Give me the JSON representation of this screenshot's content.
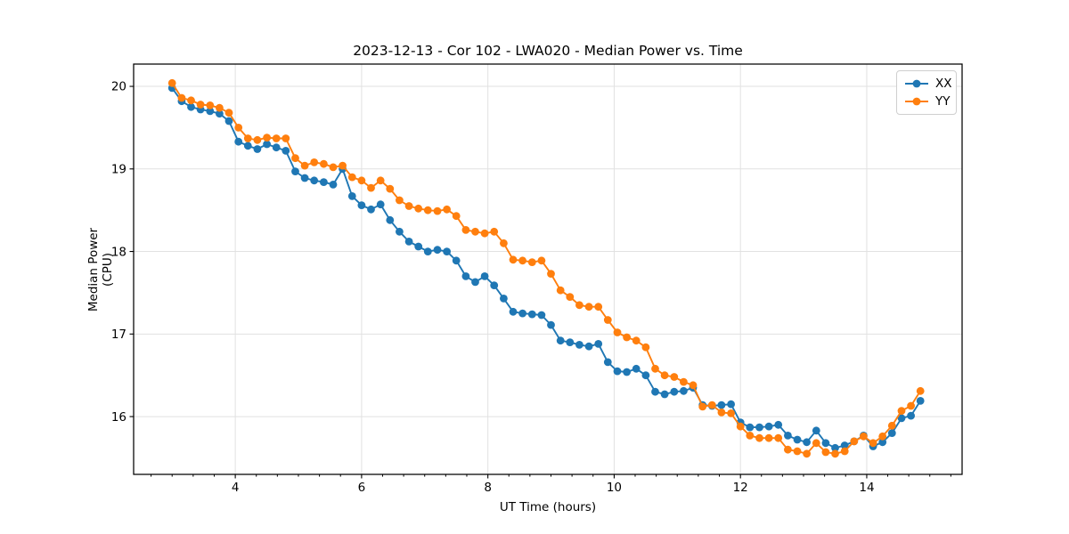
{
  "chart_data": {
    "type": "line",
    "title": "2023-12-13 - Cor 102 - LWA020 - Median Power vs. Time",
    "xlabel": "UT Time (hours)",
    "ylabel": "Median Power (CPU)",
    "xlim": [
      2.39,
      15.51
    ],
    "ylim": [
      15.3,
      20.27
    ],
    "xticks": [
      4,
      6,
      8,
      10,
      12,
      14
    ],
    "yticks": [
      16,
      17,
      18,
      19,
      20
    ],
    "x_minor_tick_step": 0.3333,
    "grid": true,
    "grid_color": "#e1e1e1",
    "legend_position": "upper right",
    "marker_style": "circle",
    "x": [
      3.0,
      3.15,
      3.3,
      3.45,
      3.6,
      3.75,
      3.9,
      4.05,
      4.2,
      4.35,
      4.5,
      4.65,
      4.8,
      4.95,
      5.1,
      5.25,
      5.4,
      5.55,
      5.7,
      5.85,
      6.0,
      6.15,
      6.3,
      6.45,
      6.6,
      6.75,
      6.9,
      7.05,
      7.2,
      7.35,
      7.5,
      7.65,
      7.8,
      7.95,
      8.1,
      8.25,
      8.4,
      8.55,
      8.7,
      8.85,
      9.0,
      9.15,
      9.3,
      9.45,
      9.6,
      9.75,
      9.9,
      10.05,
      10.2,
      10.35,
      10.5,
      10.65,
      10.8,
      10.95,
      11.1,
      11.25,
      11.4,
      11.55,
      11.7,
      11.85,
      12.0,
      12.15,
      12.3,
      12.45,
      12.6,
      12.75,
      12.9,
      13.05,
      13.2,
      13.35,
      13.5,
      13.65,
      13.8,
      13.95,
      14.1,
      14.25,
      14.4,
      14.55,
      14.7,
      14.85
    ],
    "series": [
      {
        "name": "XX",
        "color": "#1f77b4",
        "values": [
          19.98,
          19.82,
          19.75,
          19.72,
          19.7,
          19.67,
          19.58,
          19.33,
          19.28,
          19.24,
          19.3,
          19.26,
          19.22,
          18.97,
          18.89,
          18.86,
          18.84,
          18.81,
          19.0,
          18.67,
          18.56,
          18.51,
          18.57,
          18.38,
          18.24,
          18.12,
          18.06,
          18.0,
          18.02,
          18.0,
          17.89,
          17.7,
          17.63,
          17.7,
          17.59,
          17.43,
          17.27,
          17.25,
          17.24,
          17.23,
          17.11,
          16.92,
          16.9,
          16.87,
          16.85,
          16.88,
          16.66,
          16.55,
          16.54,
          16.58,
          16.5,
          16.3,
          16.27,
          16.3,
          16.31,
          16.35,
          16.14,
          16.13,
          16.14,
          16.15,
          15.93,
          15.87,
          15.87,
          15.88,
          15.9,
          15.77,
          15.72,
          15.69,
          15.83,
          15.68,
          15.62,
          15.65,
          15.7,
          15.77,
          15.64,
          15.69,
          15.8,
          15.98,
          16.01,
          16.19
        ]
      },
      {
        "name": "YY",
        "color": "#ff7f0e",
        "values": [
          20.04,
          19.86,
          19.83,
          19.78,
          19.77,
          19.74,
          19.68,
          19.5,
          19.37,
          19.35,
          19.38,
          19.37,
          19.37,
          19.13,
          19.04,
          19.08,
          19.06,
          19.02,
          19.04,
          18.9,
          18.86,
          18.77,
          18.86,
          18.76,
          18.62,
          18.55,
          18.52,
          18.5,
          18.49,
          18.51,
          18.43,
          18.26,
          18.24,
          18.22,
          18.24,
          18.1,
          17.9,
          17.89,
          17.87,
          17.89,
          17.73,
          17.53,
          17.45,
          17.35,
          17.33,
          17.33,
          17.17,
          17.02,
          16.96,
          16.92,
          16.84,
          16.58,
          16.5,
          16.48,
          16.42,
          16.38,
          16.12,
          16.14,
          16.05,
          16.04,
          15.88,
          15.77,
          15.74,
          15.74,
          15.74,
          15.6,
          15.58,
          15.55,
          15.68,
          15.57,
          15.55,
          15.58,
          15.7,
          15.76,
          15.68,
          15.76,
          15.89,
          16.07,
          16.13,
          16.31
        ]
      }
    ]
  }
}
